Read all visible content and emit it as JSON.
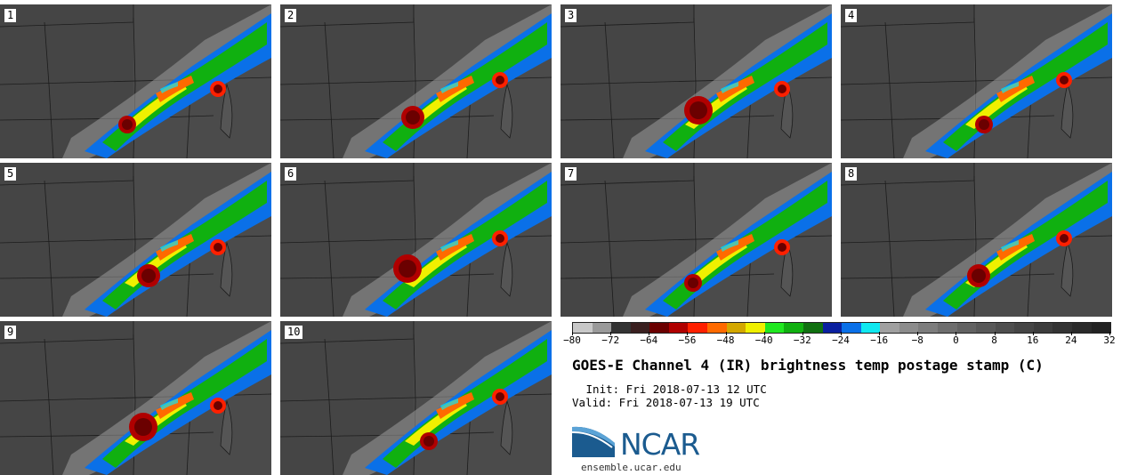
{
  "panels": [
    {
      "label": "1"
    },
    {
      "label": "2"
    },
    {
      "label": "3"
    },
    {
      "label": "4"
    },
    {
      "label": "5"
    },
    {
      "label": "6"
    },
    {
      "label": "7"
    },
    {
      "label": "8"
    },
    {
      "label": "9"
    },
    {
      "label": "10"
    }
  ],
  "colorbar": {
    "colors": [
      "#c8c8c8",
      "#9a9a9a",
      "#333333",
      "#3a2020",
      "#6b0000",
      "#b00000",
      "#ff2000",
      "#ff6a00",
      "#d4a800",
      "#f0f000",
      "#20e820",
      "#10b010",
      "#107010",
      "#0a20a0",
      "#0a70e8",
      "#10e8f0",
      "#a0a0a0",
      "#8c8c8c",
      "#7d7d7d",
      "#6e6e6e",
      "#626262",
      "#585858",
      "#4e4e4e",
      "#454545",
      "#3c3c3c",
      "#333333",
      "#2a2a2a",
      "#222222"
    ],
    "ticks": [
      "−80",
      "−72",
      "−64",
      "−56",
      "−48",
      "−40",
      "−32",
      "−24",
      "−16",
      "−8",
      "0",
      "8",
      "16",
      "24",
      "32"
    ]
  },
  "title": "GOES-E Channel 4 (IR) brightness temp postage stamp (C)",
  "init": " Init: Fri 2018-07-13 12 UTC",
  "valid": "Valid: Fri 2018-07-13 19 UTC",
  "logo": {
    "text": "NCAR",
    "site": "ensemble.ucar.edu"
  }
}
